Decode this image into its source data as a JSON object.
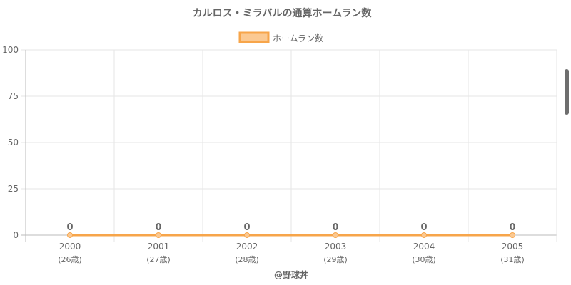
{
  "chart_data": {
    "type": "line",
    "title": "カルロス・ミラバルの通算ホームラン数",
    "categories": [
      "2000",
      "2001",
      "2002",
      "2003",
      "2004",
      "2005"
    ],
    "sub_categories": [
      "(26歳)",
      "(27歳)",
      "(28歳)",
      "(29歳)",
      "(30歳)",
      "(31歳)"
    ],
    "series": [
      {
        "name": "ホームラン数",
        "values": [
          0,
          0,
          0,
          0,
          0,
          0
        ],
        "color": "#f7a54a",
        "fill": "#fbc992"
      }
    ],
    "data_labels": [
      "0",
      "0",
      "0",
      "0",
      "0",
      "0"
    ],
    "ylim": [
      0,
      100
    ],
    "yticks": [
      "0",
      "25",
      "50",
      "75",
      "100"
    ],
    "ytick_values": [
      0,
      25,
      50,
      75,
      100
    ],
    "grid": true,
    "legend_position": "top",
    "footer": "@野球丼"
  }
}
